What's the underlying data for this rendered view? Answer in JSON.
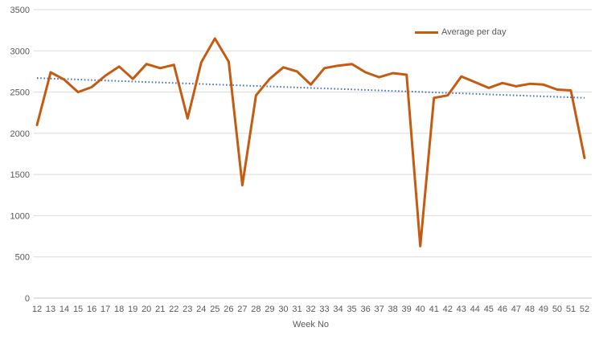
{
  "chart_data": {
    "type": "line",
    "title": "",
    "xlabel": "Week No",
    "ylabel": "",
    "ylim": [
      0,
      3500
    ],
    "yticks": [
      0,
      500,
      1000,
      1500,
      2000,
      2500,
      3000,
      3500
    ],
    "grid": "horizontal",
    "legend_position": "top-right",
    "x": [
      12,
      13,
      14,
      15,
      16,
      17,
      18,
      19,
      20,
      21,
      22,
      23,
      24,
      25,
      26,
      27,
      28,
      29,
      30,
      31,
      32,
      33,
      34,
      35,
      36,
      37,
      38,
      39,
      40,
      41,
      42,
      43,
      44,
      45,
      46,
      47,
      48,
      49,
      50,
      51,
      52
    ],
    "series": [
      {
        "name": "Average per day",
        "color": "#C55A11",
        "values": [
          2100,
          2740,
          2650,
          2500,
          2560,
          2700,
          2810,
          2660,
          2840,
          2790,
          2830,
          2180,
          2860,
          3150,
          2870,
          1370,
          2460,
          2660,
          2800,
          2750,
          2590,
          2790,
          2820,
          2840,
          2740,
          2680,
          2730,
          2710,
          630,
          2430,
          2460,
          2690,
          2620,
          2550,
          2610,
          2570,
          2600,
          2590,
          2530,
          2520,
          1700
        ]
      }
    ],
    "trendline": {
      "name": "linear-trend",
      "style": "dotted",
      "color": "#4472C4",
      "start_value": 2670,
      "end_value": 2430
    }
  },
  "colors": {
    "gridline": "#D9D9D9",
    "axis_line": "#C6C6C6",
    "tick_text": "#595959",
    "background": "#FFFFFF"
  }
}
